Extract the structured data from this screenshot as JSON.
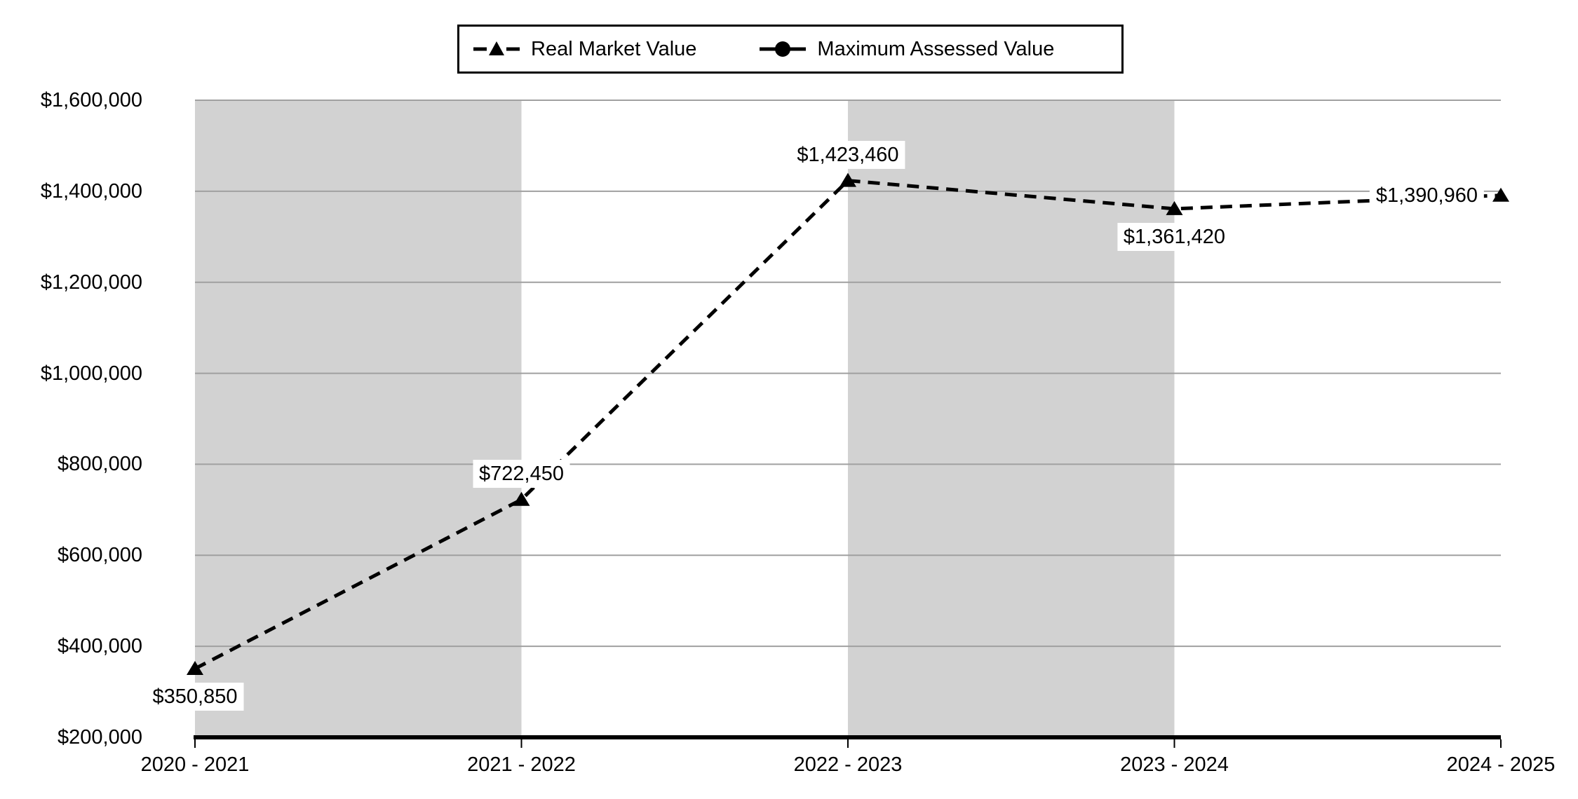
{
  "legend": {
    "position": "top-center",
    "items": [
      {
        "label": "Real Market Value",
        "icon": "dashed-line-triangle-marker"
      },
      {
        "label": "Maximum Assessed Value",
        "icon": "solid-line-circle-marker"
      }
    ]
  },
  "chart_data": {
    "type": "line",
    "title": "",
    "xlabel": "",
    "ylabel": "",
    "categories": [
      "2020 - 2021",
      "2021 - 2022",
      "2022 - 2023",
      "2023 - 2024",
      "2024 - 2025"
    ],
    "series": [
      {
        "name": "Real Market Value",
        "values": [
          350850,
          722450,
          1423460,
          1361420,
          1390960
        ],
        "line_style": "dashed",
        "marker": "triangle",
        "color": "#000000",
        "data_labels": [
          "$350,850",
          "$722,450",
          "$1,423,460",
          "$1,361,420",
          "$1,390,960"
        ],
        "label_placements": [
          "below",
          "above",
          "above",
          "below",
          "left"
        ]
      },
      {
        "name": "Maximum Assessed Value",
        "values": null,
        "line_style": "solid",
        "marker": "circle",
        "color": "#000000"
      }
    ],
    "ylim": [
      200000,
      1600000
    ],
    "ytick_step": 200000,
    "ytick_labels": [
      "$1,600,000",
      "$1,400,000",
      "$1,200,000",
      "$1,000,000",
      "$800,000",
      "$600,000",
      "$400,000",
      "$200,000"
    ],
    "grid": "horizontal",
    "gridline_color": "#a0a0a0",
    "axis_color": "#000000",
    "band_color": "#d2d2d2",
    "band_column_indexes": [
      0,
      2
    ],
    "legend_position": "top-center"
  }
}
